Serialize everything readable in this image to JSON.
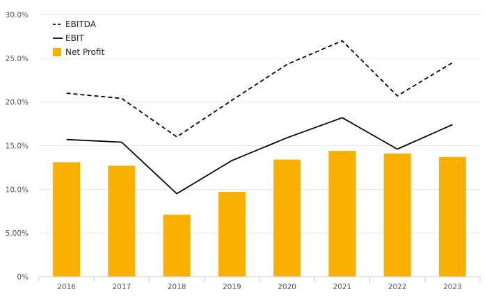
{
  "chart_data": {
    "type": "bar",
    "categories": [
      "2016",
      "2017",
      "2018",
      "2019",
      "2020",
      "2021",
      "2022",
      "2023"
    ],
    "ylim": [
      0,
      30
    ],
    "yticks": [
      {
        "value": 0,
        "label": "0%"
      },
      {
        "value": 5,
        "label": "5.00%"
      },
      {
        "value": 10,
        "label": "10.0%"
      },
      {
        "value": 15,
        "label": "15.0%"
      },
      {
        "value": 20,
        "label": "20.0%"
      },
      {
        "value": 25,
        "label": "25.0%"
      },
      {
        "value": 30,
        "label": "30.0%"
      }
    ],
    "grid": true,
    "legend_position": "top-left",
    "series": [
      {
        "name": "EBITDA",
        "type": "line",
        "style": "dashed",
        "color": "#000000",
        "values": [
          21.0,
          20.4,
          16.0,
          20.2,
          24.3,
          27.0,
          20.7,
          24.5
        ]
      },
      {
        "name": "EBIT",
        "type": "line",
        "style": "solid",
        "color": "#000000",
        "values": [
          15.7,
          15.4,
          9.5,
          13.3,
          15.9,
          18.2,
          14.6,
          17.4
        ]
      },
      {
        "name": "Net Profit",
        "type": "bar",
        "color": "#F9B000",
        "values": [
          13.1,
          12.7,
          7.1,
          9.7,
          13.4,
          14.4,
          14.1,
          13.7
        ]
      }
    ]
  }
}
